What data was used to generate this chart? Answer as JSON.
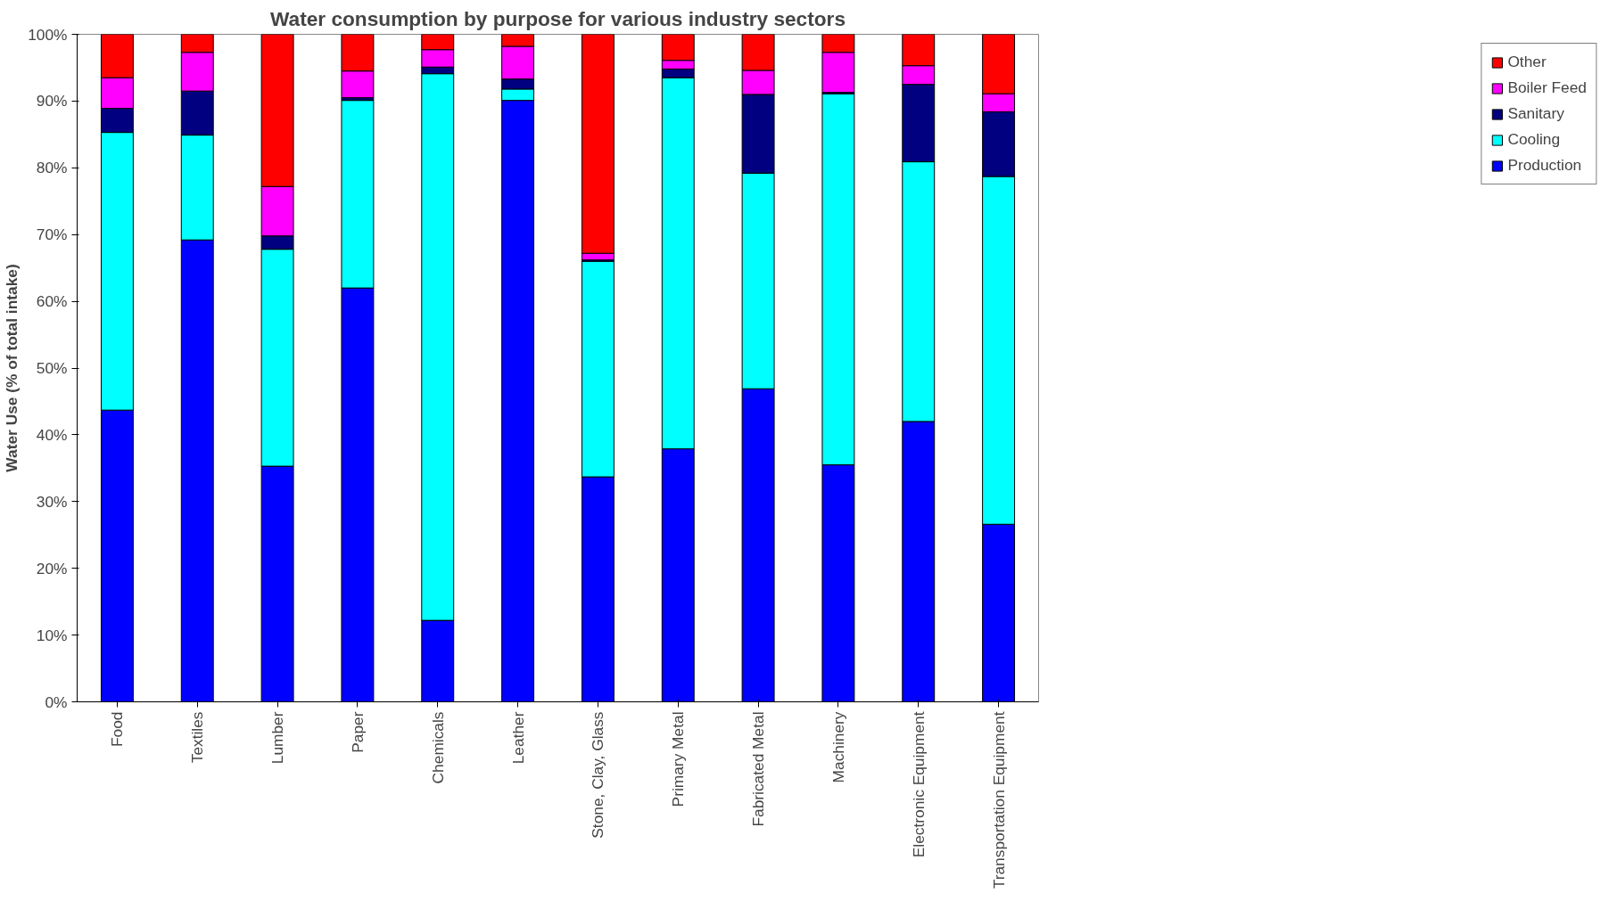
{
  "chart_data": {
    "type": "bar",
    "stacked": true,
    "title": "Water consumption by purpose for various industry sectors",
    "ylabel": "Water Use (% of total intake)",
    "categories": [
      "Food",
      "Textiles",
      "Lumber",
      "Paper",
      "Chemicals",
      "Leather",
      "Stone, Clay, Glass",
      "Primary Metal",
      "Fabricated Metal",
      "Machinery",
      "Electronic Equipment",
      "Transportation Equipment"
    ],
    "series": [
      {
        "name": "Production",
        "color": "#0000ff",
        "values": [
          43.7,
          69.2,
          35.3,
          62.0,
          12.2,
          90.1,
          33.7,
          37.9,
          46.9,
          35.5,
          42.0,
          26.6
        ]
      },
      {
        "name": "Cooling",
        "color": "#00ffff",
        "values": [
          41.6,
          15.7,
          32.5,
          28.1,
          81.9,
          1.7,
          32.3,
          55.6,
          32.3,
          55.6,
          38.9,
          52.1
        ]
      },
      {
        "name": "Sanitary",
        "color": "#000080",
        "values": [
          3.6,
          6.6,
          2.0,
          0.4,
          1.0,
          1.5,
          0.2,
          1.3,
          11.8,
          0.2,
          11.6,
          9.7
        ]
      },
      {
        "name": "Boiler Feed",
        "color": "#ff00ff",
        "values": [
          4.6,
          5.8,
          7.4,
          4.0,
          2.6,
          4.9,
          1.0,
          1.3,
          3.6,
          6.0,
          2.8,
          2.7
        ]
      },
      {
        "name": "Other",
        "color": "#ff0000",
        "values": [
          6.5,
          2.7,
          22.8,
          5.5,
          2.3,
          1.8,
          32.8,
          3.9,
          5.4,
          2.7,
          4.7,
          8.9
        ]
      }
    ],
    "ylim": [
      0,
      100
    ],
    "yticks": [
      {
        "value": 0,
        "label": "0%"
      },
      {
        "value": 10,
        "label": "10%"
      },
      {
        "value": 20,
        "label": "20%"
      },
      {
        "value": 30,
        "label": "30%"
      },
      {
        "value": 40,
        "label": "40%"
      },
      {
        "value": 50,
        "label": "50%"
      },
      {
        "value": 60,
        "label": "60%"
      },
      {
        "value": 70,
        "label": "70%"
      },
      {
        "value": 80,
        "label": "80%"
      },
      {
        "value": 90,
        "label": "90%"
      },
      {
        "value": 100,
        "label": "100%"
      }
    ],
    "grid": false,
    "legend": "right"
  }
}
